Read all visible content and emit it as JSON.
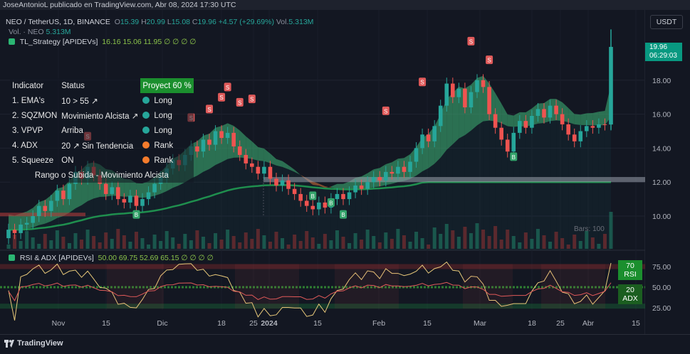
{
  "attribution": "JoseAntonioL publicado en TradingView.com, Abr 08, 2024 17:30 UTC",
  "currency_button": "USDT",
  "header": {
    "symbol": "NEO / TetherUS, 1D, BINANCE",
    "o_label": "O",
    "o": "15.39",
    "h_label": "H",
    "h": "20.99",
    "l_label": "L",
    "l": "15.08",
    "c_label": "C",
    "c": "19.96",
    "change": "+4.57 (+29.69%)",
    "vol_label": "Vol.",
    "vol": "5.313M",
    "vol_line_label": "Vol. · NEO",
    "vol_line_value": "5.313M",
    "strategy_name": "TL_Strategy [APIDEVs]",
    "strategy_values": "16.16  15.06  11.95  ∅  ∅  ∅  ∅"
  },
  "indicator_table": {
    "col_indicator": "Indicator",
    "col_status": "Status",
    "projection": "Proyect 60 %",
    "rows": [
      {
        "name": "1. EMA's",
        "status": "10 > 55 ↗",
        "signal": "Long",
        "color": "#26a69a"
      },
      {
        "name": "2. SQZMON",
        "status": "Movimiento Alcista ↗",
        "signal": "Long",
        "color": "#26a69a"
      },
      {
        "name": "3. VPVP",
        "status": "Arriba",
        "signal": "Long",
        "color": "#26a69a"
      },
      {
        "name": "4. ADX",
        "status": "20 ↗ Sin Tendencia",
        "signal": "Rank",
        "color": "#f57c2c"
      },
      {
        "name": "5. Squeeze",
        "status": "ON",
        "signal": "Rank",
        "color": "#f57c2c"
      }
    ],
    "caption": "Rango o Subida - Movimiento Alcista"
  },
  "last_price": {
    "value": "19.96",
    "countdown": "06:29:03"
  },
  "bars_label": "Bars: 100",
  "rsi_panel": {
    "title": "RSI & ADX [APIDEVs]",
    "values": "50.00  69.75  52.69  65.15  ∅  ∅  ∅  ∅",
    "tag_rsi_value": "70",
    "tag_rsi_label": "RSI",
    "tag_adx_value": "20",
    "tag_adx_label": "ADX"
  },
  "logo_text": "TradingView",
  "colors": {
    "up": "#26a69a",
    "down": "#ef5350",
    "ema_green": "#4caf50",
    "accent": "#089981"
  },
  "chart_data": {
    "type": "candlestick",
    "price_axis": {
      "ticks": [
        10.0,
        12.0,
        14.0,
        16.0,
        18.0
      ],
      "range": [
        9.0,
        21.0
      ]
    },
    "rsi_axis": {
      "ticks": [
        25.0,
        50.0,
        75.0
      ],
      "range": [
        20,
        90
      ]
    },
    "time_axis": {
      "labels": [
        "Nov",
        "15",
        "Dic",
        "18",
        "25",
        "2024",
        "15",
        "Feb",
        "15",
        "Mar",
        "18",
        "25",
        "Abr",
        "15"
      ]
    },
    "support_zone": [
      12.0,
      12.3
    ],
    "candles": [
      [
        8.7,
        9.2
      ],
      [
        9.2,
        9.0
      ],
      [
        9.0,
        9.5
      ],
      [
        9.5,
        9.6
      ],
      [
        9.6,
        10.0
      ],
      [
        10.0,
        10.6
      ],
      [
        10.6,
        10.3
      ],
      [
        10.3,
        10.9
      ],
      [
        10.9,
        11.5
      ],
      [
        11.5,
        11.0
      ],
      [
        11.0,
        11.9
      ],
      [
        11.9,
        12.6
      ],
      [
        12.6,
        12.2
      ],
      [
        12.2,
        12.9
      ],
      [
        12.9,
        12.4
      ],
      [
        12.4,
        11.9
      ],
      [
        11.9,
        11.3
      ],
      [
        11.3,
        11.7
      ],
      [
        11.7,
        11.0
      ],
      [
        11.0,
        10.8
      ],
      [
        10.8,
        11.2
      ],
      [
        11.2,
        10.6
      ],
      [
        10.6,
        11.0
      ],
      [
        11.0,
        11.4
      ],
      [
        11.4,
        11.9
      ],
      [
        11.9,
        12.3
      ],
      [
        12.3,
        12.8
      ],
      [
        12.8,
        13.3
      ],
      [
        13.3,
        13.0
      ],
      [
        13.0,
        13.6
      ],
      [
        13.6,
        14.1
      ],
      [
        14.1,
        13.8
      ],
      [
        13.8,
        14.5
      ],
      [
        14.5,
        14.2
      ],
      [
        14.2,
        15.0
      ],
      [
        15.0,
        14.6
      ],
      [
        14.6,
        14.9
      ],
      [
        14.9,
        14.1
      ],
      [
        14.1,
        13.6
      ],
      [
        13.6,
        13.1
      ],
      [
        13.1,
        12.9
      ],
      [
        12.9,
        12.5
      ],
      [
        12.5,
        12.9
      ],
      [
        12.9,
        12.2
      ],
      [
        12.2,
        11.8
      ],
      [
        11.8,
        12.1
      ],
      [
        12.1,
        11.6
      ],
      [
        11.6,
        11.3
      ],
      [
        11.3,
        10.9
      ],
      [
        10.9,
        10.6
      ],
      [
        10.6,
        10.4
      ],
      [
        10.4,
        10.8
      ],
      [
        10.8,
        10.5
      ],
      [
        10.5,
        11.0
      ],
      [
        11.0,
        11.3
      ],
      [
        11.3,
        11.0
      ],
      [
        11.0,
        11.4
      ],
      [
        11.4,
        11.8
      ],
      [
        11.8,
        11.6
      ],
      [
        11.6,
        12.0
      ],
      [
        12.0,
        12.3
      ],
      [
        12.3,
        12.1
      ],
      [
        12.1,
        12.6
      ],
      [
        12.6,
        12.5
      ],
      [
        12.5,
        12.9
      ],
      [
        12.9,
        12.6
      ],
      [
        12.6,
        13.2
      ],
      [
        13.2,
        14.0
      ],
      [
        14.0,
        14.8
      ],
      [
        14.8,
        14.4
      ],
      [
        14.4,
        15.3
      ],
      [
        15.3,
        16.5
      ],
      [
        16.5,
        17.8
      ],
      [
        17.8,
        17.0
      ],
      [
        17.0,
        17.5
      ],
      [
        17.5,
        16.4
      ],
      [
        16.4,
        17.3
      ],
      [
        17.3,
        18.0
      ],
      [
        18.0,
        17.6
      ],
      [
        17.6,
        16.0
      ],
      [
        16.0,
        15.2
      ],
      [
        15.2,
        14.5
      ],
      [
        14.5,
        13.8
      ],
      [
        13.8,
        14.9
      ],
      [
        14.9,
        15.6
      ],
      [
        15.6,
        15.2
      ],
      [
        15.2,
        15.9
      ],
      [
        15.9,
        16.3
      ],
      [
        16.3,
        15.8
      ],
      [
        15.8,
        16.5
      ],
      [
        16.5,
        16.0
      ],
      [
        16.0,
        15.4
      ],
      [
        15.4,
        14.8
      ],
      [
        14.8,
        14.4
      ],
      [
        14.4,
        15.0
      ],
      [
        15.0,
        15.3
      ],
      [
        15.3,
        15.2
      ],
      [
        15.2,
        15.4
      ],
      [
        15.4,
        15.39
      ],
      [
        15.39,
        19.96
      ]
    ]
  }
}
